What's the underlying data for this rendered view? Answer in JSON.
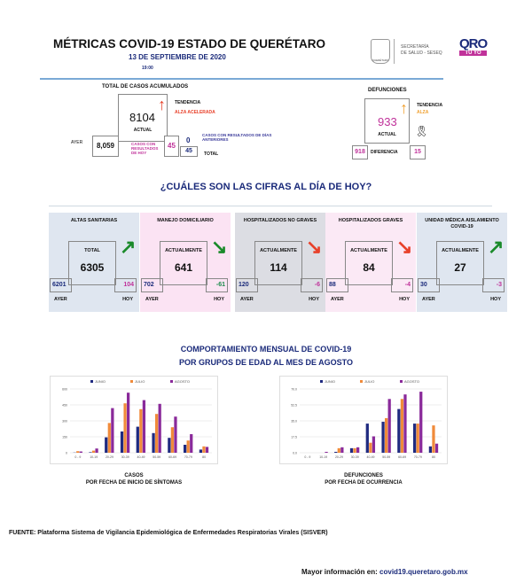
{
  "header": {
    "title": "MÉTRICAS COVID-19 ESTADO DE QUERÉTARO",
    "date": "13 DE SEPTIEMBRE DE 2020",
    "time": "19:00",
    "seal_text": "QUERÉTARO",
    "secretaria_line1": "SECRETARÍA",
    "secretaria_line2": "DE SALUD - SESEQ",
    "logo_text": "QRO",
    "logo_sub": "TÚ YO"
  },
  "casos": {
    "title": "TOTAL DE CASOS ACUMULADOS",
    "actual": "8104",
    "actual_label": "ACTUAL",
    "tendencia_label": "TENDENCIA",
    "tendencia": "ALZA ACELERADA",
    "ayer_label": "AYER",
    "ayer": "8,059",
    "hoy_label": "CASOS CON RESULTADOS DE HOY",
    "hoy": "45",
    "anteriores_label": "CASOS CON RESULTADOS DE DÍAS ANTERIORES",
    "anteriores": "0",
    "total": "45",
    "total_label": "TOTAL",
    "colors": {
      "tendencia": "#e8412a"
    }
  },
  "defunciones": {
    "title": "DEFUNCIONES",
    "actual": "933",
    "actual_label": "ACTUAL",
    "tendencia_label": "TENDENCIA",
    "tendencia": "ALZA",
    "ayer": "918",
    "diferencia_label": "DIFERENCIA",
    "diferencia": "15",
    "colors": {
      "tendencia": "#f0a030"
    }
  },
  "question": "¿CUÁLES SON LAS CIFRAS AL DÍA DE HOY?",
  "cards": [
    {
      "title": "ALTAS SANITARIAS",
      "label": "TOTAL",
      "value": "6305",
      "ayer": "6201",
      "hoy": "104",
      "ayer_label": "AYER",
      "hoy_label": "HOY",
      "trend": "up",
      "bg": "#dfe6f0",
      "arrow_color": "#1a8a2a"
    },
    {
      "title": "MANEJO DOMICILIARIO",
      "label": "ACTUALMENTE",
      "value": "641",
      "ayer": "702",
      "hoy": "-61",
      "ayer_label": "AYER",
      "hoy_label": "HOY",
      "trend": "down",
      "bg": "#fbe3f3",
      "arrow_color": "#1a8a2a"
    },
    {
      "title": "HOSPITALIZADOS NO GRAVES",
      "label": "ACTUALMENTE",
      "value": "114",
      "ayer": "120",
      "hoy": "-6",
      "ayer_label": "AYER",
      "hoy_label": "HOY",
      "trend": "down",
      "bg": "#dcdde3",
      "arrow_color": "#e8412a"
    },
    {
      "title": "HOSPITALIZADOS GRAVES",
      "label": "ACTUALMENTE",
      "value": "84",
      "ayer": "88",
      "hoy": "-4",
      "ayer_label": "AYER",
      "hoy_label": "HOY",
      "trend": "down",
      "bg": "#fbe9f5",
      "arrow_color": "#e8412a"
    },
    {
      "title": "UNIDAD MÉDICA AISLAMIENTO COVID-19",
      "label": "ACTUALMENTE",
      "value": "27",
      "ayer": "30",
      "hoy": "-3",
      "ayer_label": "AYER",
      "hoy_label": "HOY",
      "trend": "up",
      "bg": "#dfe6f0",
      "arrow_color": "#1a8a2a"
    }
  ],
  "section2": {
    "title1": "COMPORTAMIENTO MENSUAL DE COVID-19",
    "title2": "POR GRUPOS DE EDAD AL MES DE AGOSTO"
  },
  "chart_data": [
    {
      "type": "bar",
      "title": "CASOS",
      "subtitle": "POR FECHA DE INICIO DE SÍNTOMAS",
      "categories": [
        "0 - 9",
        "10-19",
        "20-29",
        "30-39",
        "40-49",
        "50-59",
        "60-69",
        "70-79",
        "80"
      ],
      "ylim": [
        0,
        600
      ],
      "yticks": [
        "0",
        "150",
        "300",
        "450",
        "600"
      ],
      "legend": "top",
      "series": [
        {
          "name": "JUNIO",
          "color": "#1f2a80",
          "values": [
            2,
            5,
            145,
            200,
            245,
            185,
            140,
            75,
            30
          ]
        },
        {
          "name": "JULIO",
          "color": "#f08a3a",
          "values": [
            15,
            20,
            280,
            465,
            410,
            365,
            240,
            115,
            60
          ]
        },
        {
          "name": "AGOSTO",
          "color": "#8a2a9a",
          "values": [
            12,
            40,
            420,
            565,
            495,
            460,
            340,
            175,
            55
          ]
        }
      ]
    },
    {
      "type": "bar",
      "title": "DEFUNCIONES",
      "subtitle": "POR FECHA DE OCURRENCIA",
      "categories": [
        "0 - 9",
        "10-19",
        "20-29",
        "30-39",
        "40-49",
        "50-59",
        "60-69",
        "70-79",
        "80"
      ],
      "ylim": [
        0,
        70
      ],
      "yticks": [
        "0.0",
        "17.5",
        "35.0",
        "52.5",
        "70.0"
      ],
      "legend": "top",
      "series": [
        {
          "name": "JUNIO",
          "color": "#1f2a80",
          "values": [
            0,
            0,
            1,
            5,
            32,
            34,
            48,
            32,
            7
          ]
        },
        {
          "name": "JULIO",
          "color": "#f08a3a",
          "values": [
            0,
            0,
            5,
            5,
            11,
            38,
            59,
            32,
            30
          ]
        },
        {
          "name": "AGOSTO",
          "color": "#8a2a9a",
          "values": [
            0,
            1,
            6,
            6,
            18,
            59,
            64,
            67,
            10
          ]
        }
      ]
    }
  ],
  "fuente": "FUENTE: Plataforma Sistema  de Vigilancia Epidemiológica de Enfermedades Respiratorias Virales (SISVER)",
  "footer": {
    "label": "Mayor información en:",
    "link": "covid19.queretaro.gob.mx"
  }
}
